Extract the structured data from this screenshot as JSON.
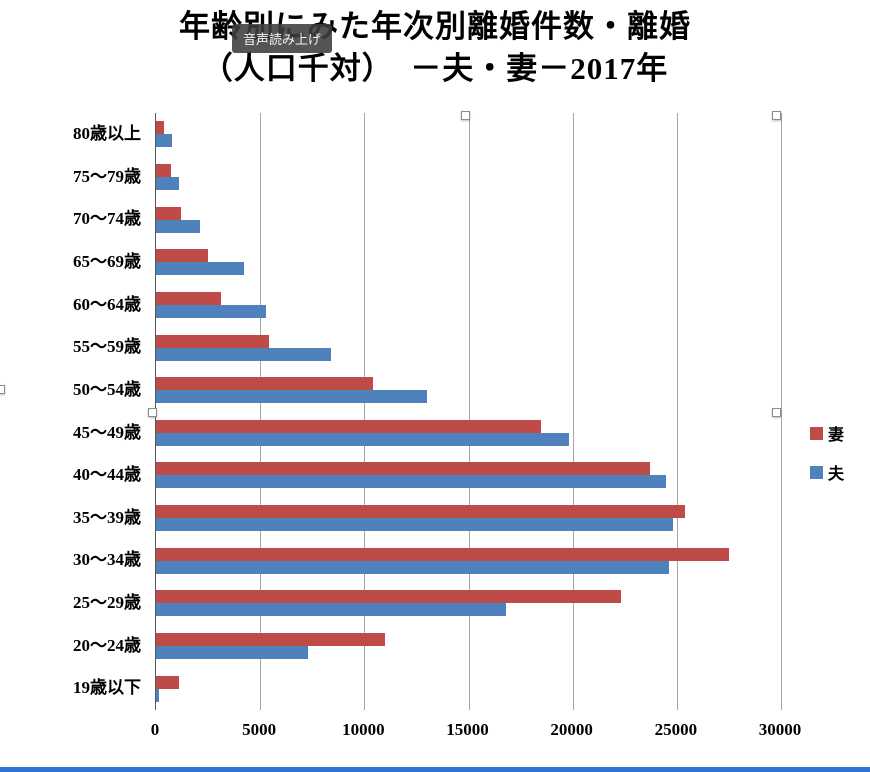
{
  "title": {
    "line1": "年齢別にみた年次別離婚件数・離婚",
    "line2": "（人口千対）　－夫・妻－2017年"
  },
  "tooltip": {
    "text": "音声読み上げ"
  },
  "legend": [
    {
      "label": "妻",
      "color": "#be4b48"
    },
    {
      "label": "夫",
      "color": "#4f81bd"
    }
  ],
  "colors": {
    "wife": "#be4b48",
    "husband": "#4f81bd",
    "gridline": "#a6a6a6",
    "bottom_bar": "#2e75d6"
  },
  "chart_data": {
    "type": "bar",
    "orientation": "horizontal",
    "title": "年齢別にみた年次別離婚件数・離婚（人口千対） －夫・妻－2017年",
    "xlabel": "",
    "ylabel": "",
    "xlim": [
      0,
      30000
    ],
    "xticks": [
      0,
      5000,
      10000,
      15000,
      20000,
      25000,
      30000
    ],
    "grid": true,
    "legend_position": "right",
    "categories": [
      "80歳以上",
      "75〜79歳",
      "70〜74歳",
      "65〜69歳",
      "60〜64歳",
      "55〜59歳",
      "50〜54歳",
      "45〜49歳",
      "40〜44歳",
      "35〜39歳",
      "30〜34歳",
      "25〜29歳",
      "20〜24歳",
      "19歳以下"
    ],
    "series": [
      {
        "name": "妻",
        "color": "#be4b48",
        "values": [
          400,
          700,
          1200,
          2500,
          3100,
          5400,
          10400,
          18500,
          23700,
          25400,
          27500,
          22300,
          11000,
          1100
        ]
      },
      {
        "name": "夫",
        "color": "#4f81bd",
        "values": [
          750,
          1100,
          2100,
          4200,
          5300,
          8400,
          13000,
          19800,
          24500,
          24800,
          24600,
          16800,
          7300,
          150
        ]
      }
    ]
  }
}
